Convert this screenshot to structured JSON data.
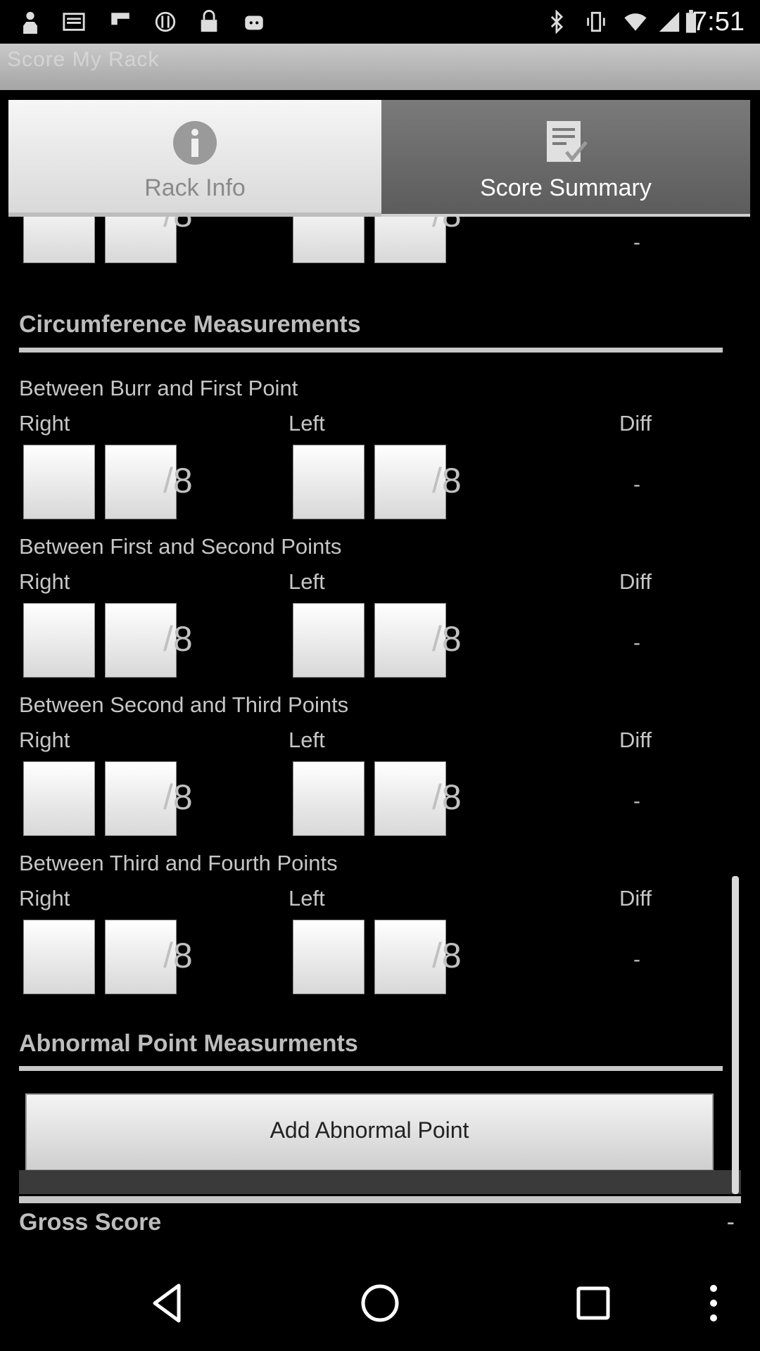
{
  "status_bar": {
    "time": "7:51",
    "left_icons": [
      "person-icon",
      "mail-icon",
      "flipboard-icon",
      "settings-icon",
      "lock-icon",
      "android-icon"
    ],
    "right_icons": [
      "bluetooth-icon",
      "vibrate-icon",
      "wifi-icon",
      "signal-icon",
      "battery-icon"
    ]
  },
  "action_bar": {
    "title": "Score My Rack"
  },
  "tabs": [
    {
      "label": "Rack Info",
      "icon": "info-icon",
      "selected": false
    },
    {
      "label": "Score Summary",
      "icon": "checklist-icon",
      "selected": true
    }
  ],
  "top_partial_row": {
    "fraction": "/8",
    "diff": "-"
  },
  "circumference": {
    "title": "Circumference Measurements",
    "groups": [
      {
        "title": "Between Burr and First Point",
        "right": "Right",
        "left": "Left",
        "diff": "Diff",
        "fraction": "/8",
        "diff_value": "-"
      },
      {
        "title": "Between First and Second Points",
        "right": "Right",
        "left": "Left",
        "diff": "Diff",
        "fraction": "/8",
        "diff_value": "-"
      },
      {
        "title": "Between Second and Third Points",
        "right": "Right",
        "left": "Left",
        "diff": "Diff",
        "fraction": "/8",
        "diff_value": "-"
      },
      {
        "title": "Between Third and Fourth Points",
        "right": "Right",
        "left": "Left",
        "diff": "Diff",
        "fraction": "/8",
        "diff_value": "-"
      }
    ]
  },
  "abnormal": {
    "title": "Abnormal Point Measurments",
    "add_button": "Add Abnormal Point"
  },
  "gross": {
    "label": "Gross Score",
    "value": "-"
  },
  "nav": [
    "back-icon",
    "home-icon",
    "recents-icon",
    "overflow-menu-icon"
  ]
}
